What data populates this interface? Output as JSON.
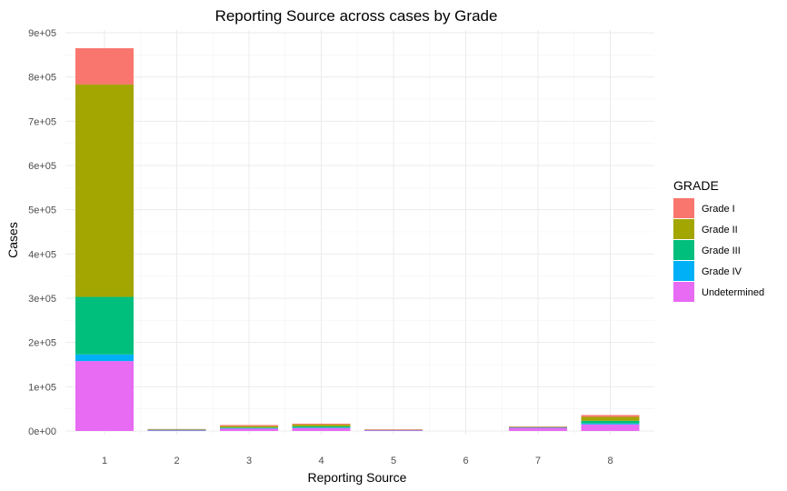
{
  "chart_data": {
    "type": "bar",
    "stacked": true,
    "title": "Reporting Source across cases by Grade",
    "xlabel": "Reporting Source",
    "ylabel": "Cases",
    "categories": [
      "1",
      "2",
      "3",
      "4",
      "5",
      "6",
      "7",
      "8"
    ],
    "ylim": [
      0,
      900000
    ],
    "yticks": [
      0,
      100000,
      200000,
      300000,
      400000,
      500000,
      600000,
      700000,
      800000,
      900000
    ],
    "ytick_labels": [
      "0e+00",
      "1e+05",
      "2e+05",
      "3e+05",
      "4e+05",
      "5e+05",
      "6e+05",
      "7e+05",
      "8e+05",
      "9e+05"
    ],
    "grid": true,
    "legend": {
      "title": "GRADE",
      "placement": "right"
    },
    "series": [
      {
        "name": "Undetermined",
        "color": "#E76BF3",
        "values": [
          158000,
          2000,
          6000,
          7000,
          2500,
          0,
          8000,
          15000
        ]
      },
      {
        "name": "Grade IV",
        "color": "#00B0F6",
        "values": [
          15000,
          300,
          500,
          700,
          100,
          0,
          300,
          2000
        ]
      },
      {
        "name": "Grade III",
        "color": "#00BF7D",
        "values": [
          130000,
          500,
          1500,
          3000,
          300,
          0,
          500,
          6000
        ]
      },
      {
        "name": "Grade II",
        "color": "#A3A500",
        "values": [
          480000,
          1000,
          3000,
          4000,
          400,
          0,
          700,
          9000
        ]
      },
      {
        "name": "Grade I",
        "color": "#F8766D",
        "values": [
          82000,
          700,
          2500,
          2000,
          200,
          0,
          500,
          4000
        ]
      }
    ],
    "legend_order": [
      "Grade I",
      "Grade II",
      "Grade III",
      "Grade IV",
      "Undetermined"
    ]
  }
}
